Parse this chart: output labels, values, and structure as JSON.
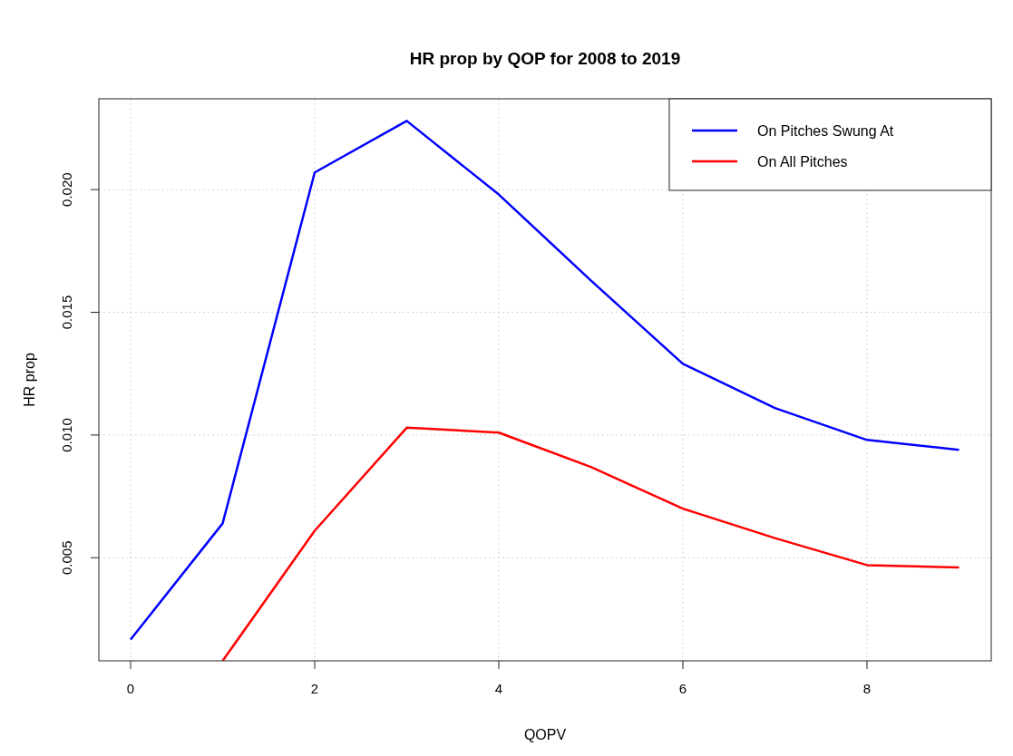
{
  "chart_data": {
    "type": "line",
    "title": "HR prop by QOP for 2008 to 2019",
    "xlabel": "QOPV",
    "ylabel": "HR prop",
    "x": [
      0,
      1,
      2,
      3,
      4,
      5,
      6,
      7,
      8,
      9
    ],
    "series": [
      {
        "name": "On Pitches Swung At",
        "color": "#0000ff",
        "values": [
          0.00167,
          0.0064,
          0.0207,
          0.0228,
          0.0198,
          0.0163,
          0.0129,
          0.0111,
          0.0098,
          0.0094
        ]
      },
      {
        "name": "On All Pitches",
        "color": "#ff0000",
        "values": [
          null,
          0.0008,
          0.0061,
          0.0103,
          0.0101,
          0.0087,
          0.007,
          0.0058,
          0.0047,
          0.0046
        ]
      }
    ],
    "xlim": [
      -0.345,
      9.35
    ],
    "xticks": [
      0,
      2,
      4,
      6,
      8
    ],
    "ylim": [
      0.0008,
      0.0237
    ],
    "yticks": [
      {
        "value": 0.005,
        "label": "0.005"
      },
      {
        "value": 0.01,
        "label": "0.010"
      },
      {
        "value": 0.015,
        "label": "0.015"
      },
      {
        "value": 0.02,
        "label": "0.020"
      }
    ],
    "grid": true,
    "legend": "top right",
    "marker": "none",
    "line_style": "solid"
  }
}
